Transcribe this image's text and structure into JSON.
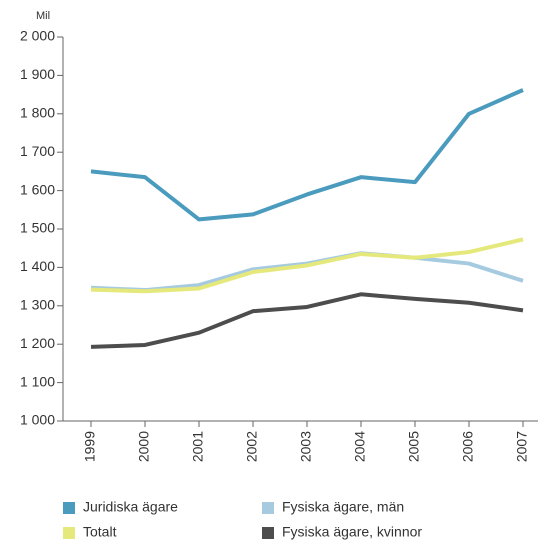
{
  "chart_data": {
    "type": "line",
    "unit_label": "Mil",
    "categories": [
      "1999",
      "2000",
      "2001",
      "2002",
      "2003",
      "2004",
      "2005",
      "2006",
      "2007"
    ],
    "series": [
      {
        "name": "Juridiska ägare",
        "color": "#4a9bbd",
        "values": [
          1650,
          1635,
          1525,
          1538,
          1590,
          1635,
          1622,
          1800,
          1862
        ]
      },
      {
        "name": "Fysiska ägare, män",
        "color": "#a6cbe0",
        "values": [
          1347,
          1341,
          1354,
          1395,
          1410,
          1437,
          1425,
          1410,
          1365
        ]
      },
      {
        "name": "Totalt",
        "color": "#e5e87a",
        "values": [
          1342,
          1338,
          1345,
          1388,
          1405,
          1435,
          1425,
          1440,
          1473
        ]
      },
      {
        "name": "Fysiska ägare, kvinnor",
        "color": "#4d4d4d",
        "values": [
          1193,
          1198,
          1230,
          1286,
          1297,
          1330,
          1318,
          1308,
          1288
        ]
      }
    ],
    "ylim": [
      1000,
      2000
    ],
    "yticks": [
      {
        "value": 1000,
        "label": "1 000"
      },
      {
        "value": 1100,
        "label": "1 100"
      },
      {
        "value": 1200,
        "label": "1 200"
      },
      {
        "value": 1300,
        "label": "1 300"
      },
      {
        "value": 1400,
        "label": "1 400"
      },
      {
        "value": 1500,
        "label": "1 500"
      },
      {
        "value": 1600,
        "label": "1 600"
      },
      {
        "value": 1700,
        "label": "1 700"
      },
      {
        "value": 1800,
        "label": "1 800"
      },
      {
        "value": 1900,
        "label": "1 900"
      },
      {
        "value": 2000,
        "label": "2 000"
      }
    ],
    "grid": false,
    "legend": "bottom"
  }
}
